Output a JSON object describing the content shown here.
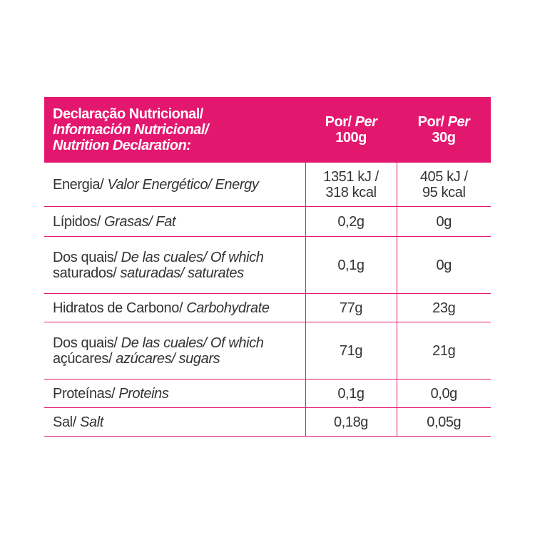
{
  "header": {
    "title_pt": "Declaração Nutricional/",
    "title_es": "Información Nutricional/",
    "title_en": "Nutrition Declaration:",
    "col100_pt": "Por/",
    "col100_en": "Per",
    "col100_qty": "100g",
    "col30_pt": "Por/",
    "col30_en": "Per",
    "col30_qty": "30g"
  },
  "rows": [
    {
      "pt": "Energia/ ",
      "es_en": "Valor Energético/ Energy",
      "pt2": "",
      "es_en2": "",
      "v100a": "1351 kJ /",
      "v100b": "318 kcal",
      "v30a": "405 kJ /",
      "v30b": "95 kcal"
    },
    {
      "pt": "Lípidos/ ",
      "es_en": "Grasas/ Fat",
      "pt2": "",
      "es_en2": "",
      "v100a": "0,2g",
      "v100b": "",
      "v30a": "0g",
      "v30b": ""
    },
    {
      "pt": "Dos quais/ ",
      "es_en": "De las cuales/ Of which",
      "pt2": "saturados/ ",
      "es_en2": "saturadas/ saturates",
      "v100a": "0,1g",
      "v100b": "",
      "v30a": "0g",
      "v30b": ""
    },
    {
      "pt": "Hidratos de Carbono/ ",
      "es_en": "Carbohydrate",
      "pt2": "",
      "es_en2": "",
      "v100a": "77g",
      "v100b": "",
      "v30a": "23g",
      "v30b": ""
    },
    {
      "pt": "Dos quais/ ",
      "es_en": "De las cuales/ Of which",
      "pt2": "açúcares/ ",
      "es_en2": "azúcares/ sugars",
      "v100a": "71g",
      "v100b": "",
      "v30a": "21g",
      "v30b": ""
    },
    {
      "pt": "Proteínas/ ",
      "es_en": "Proteins",
      "pt2": "",
      "es_en2": "",
      "v100a": "0,1g",
      "v100b": "",
      "v30a": "0,0g",
      "v30b": ""
    },
    {
      "pt": "Sal/ ",
      "es_en": "Salt",
      "pt2": "",
      "es_en2": "",
      "v100a": "0,18g",
      "v100b": "",
      "v30a": "0,05g",
      "v30b": ""
    }
  ],
  "colors": {
    "accent": "#e4176f",
    "text": "#333333"
  }
}
